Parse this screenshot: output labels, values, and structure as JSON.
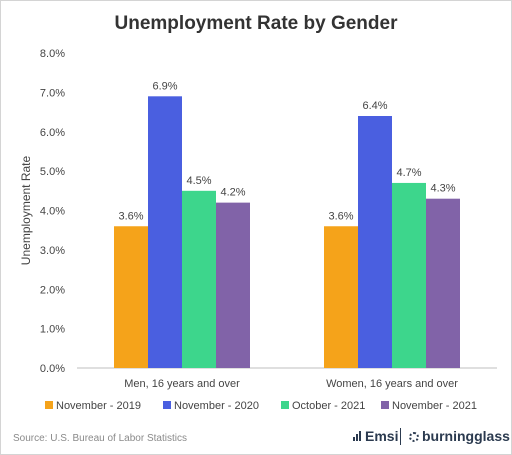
{
  "chart_data": {
    "type": "bar",
    "title": "Unemployment Rate by Gender",
    "ylabel": "Unemployment Rate",
    "xlabel": "",
    "ylim": [
      0,
      8
    ],
    "yticks": [
      "0.0%",
      "1.0%",
      "2.0%",
      "3.0%",
      "4.0%",
      "5.0%",
      "6.0%",
      "7.0%",
      "8.0%"
    ],
    "grid": false,
    "legend_position": "bottom",
    "categories": [
      "Men, 16 years and over",
      "Women, 16 years and over"
    ],
    "series": [
      {
        "name": "November - 2019",
        "color": "#f5a31a",
        "values": [
          3.6,
          3.6
        ],
        "labels": [
          "3.6%",
          "3.6%"
        ]
      },
      {
        "name": "November - 2020",
        "color": "#4a5fe0",
        "values": [
          6.9,
          6.4
        ],
        "labels": [
          "6.9%",
          "6.4%"
        ]
      },
      {
        "name": "October - 2021",
        "color": "#3dd68c",
        "values": [
          4.5,
          4.7
        ],
        "labels": [
          "4.5%",
          "4.7%"
        ]
      },
      {
        "name": "November - 2021",
        "color": "#8163a8",
        "values": [
          4.2,
          4.3
        ],
        "labels": [
          "4.2%",
          "4.3%"
        ]
      }
    ]
  },
  "footer": {
    "source": "Source:  U.S. Bureau of Labor Statistics",
    "brand_emsi": "Emsi",
    "brand_burningglass": "burningglass"
  },
  "icons": {
    "emsi_logo": "bar-signal-icon",
    "burningglass_logo": "gear-icon"
  }
}
